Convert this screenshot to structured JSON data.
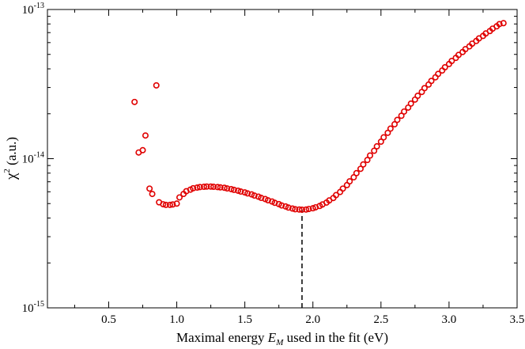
{
  "chart_data": {
    "type": "scatter",
    "title": "",
    "xlabel_parts": [
      "Maximal energy ",
      "E",
      "M",
      " used in the fit (eV)"
    ],
    "ylabel_parts": [
      "χ",
      "2",
      " (a.u.)"
    ],
    "xlim": [
      0.05,
      3.5
    ],
    "ylim_log10": [
      -15,
      -13
    ],
    "x_ticks": [
      0.5,
      1.0,
      1.5,
      2.0,
      2.5,
      3.0,
      3.5
    ],
    "x_tick_labels": [
      "0.5",
      "1.0",
      "1.5",
      "2.0",
      "2.5",
      "3.0",
      "3.5"
    ],
    "y_ticks": [
      -15,
      -14,
      -13
    ],
    "y_tick_labels": [
      {
        "base": "10",
        "exp": "-15"
      },
      {
        "base": "10",
        "exp": "-14"
      },
      {
        "base": "10",
        "exp": "-13"
      }
    ],
    "marker_color": "#e00000",
    "marker": "open-circle",
    "vline": {
      "x": 1.92,
      "style": "dashed",
      "ymax": 4.55e-15
    },
    "series": [
      {
        "name": "chi2",
        "x": [
          0.69,
          0.72,
          0.75,
          0.77,
          0.8,
          0.82,
          0.85,
          0.87,
          0.9,
          0.92,
          0.95,
          0.97,
          1.0,
          1.02,
          1.05,
          1.07,
          1.1,
          1.12,
          1.15,
          1.17,
          1.2,
          1.22,
          1.25,
          1.27,
          1.3,
          1.32,
          1.35,
          1.37,
          1.4,
          1.42,
          1.45,
          1.47,
          1.5,
          1.52,
          1.55,
          1.57,
          1.6,
          1.62,
          1.65,
          1.67,
          1.7,
          1.72,
          1.75,
          1.77,
          1.8,
          1.82,
          1.85,
          1.87,
          1.9,
          1.92,
          1.95,
          1.97,
          2.0,
          2.02,
          2.05,
          2.07,
          2.1,
          2.12,
          2.15,
          2.17,
          2.2,
          2.22,
          2.25,
          2.27,
          2.3,
          2.32,
          2.35,
          2.37,
          2.4,
          2.42,
          2.45,
          2.47,
          2.5,
          2.52,
          2.55,
          2.57,
          2.6,
          2.62,
          2.65,
          2.67,
          2.7,
          2.72,
          2.75,
          2.77,
          2.8,
          2.82,
          2.85,
          2.87,
          2.9,
          2.92,
          2.95,
          2.97,
          3.0,
          3.02,
          3.05,
          3.07,
          3.1,
          3.12,
          3.15,
          3.17,
          3.2,
          3.22,
          3.25,
          3.27,
          3.3,
          3.32,
          3.35,
          3.37,
          3.4
        ],
        "y": [
          2.4e-14,
          1.1e-14,
          1.14e-14,
          1.43e-14,
          6.3e-15,
          5.8e-15,
          3.1e-14,
          5.1e-15,
          4.95e-15,
          4.9e-15,
          4.9e-15,
          4.93e-15,
          5e-15,
          5.5e-15,
          5.8e-15,
          6.05e-15,
          6.2e-15,
          6.33e-15,
          6.4e-15,
          6.45e-15,
          6.48e-15,
          6.5e-15,
          6.5e-15,
          6.48e-15,
          6.45e-15,
          6.42e-15,
          6.38e-15,
          6.32e-15,
          6.25e-15,
          6.18e-15,
          6.1e-15,
          6.02e-15,
          5.94e-15,
          5.85e-15,
          5.76e-15,
          5.66e-15,
          5.56e-15,
          5.46e-15,
          5.36e-15,
          5.26e-15,
          5.16e-15,
          5.06e-15,
          4.96e-15,
          4.86e-15,
          4.78e-15,
          4.7e-15,
          4.63e-15,
          4.58e-15,
          4.56e-15,
          4.55e-15,
          4.56e-15,
          4.6e-15,
          4.65e-15,
          4.72e-15,
          4.82e-15,
          4.93e-15,
          5.08e-15,
          5.25e-15,
          5.45e-15,
          5.7e-15,
          5.98e-15,
          6.3e-15,
          6.65e-15,
          7.05e-15,
          7.5e-15,
          8e-15,
          8.55e-15,
          9.15e-15,
          9.8e-15,
          1.05e-14,
          1.13e-14,
          1.21e-14,
          1.3e-14,
          1.39e-14,
          1.49e-14,
          1.59e-14,
          1.7e-14,
          1.82e-14,
          1.94e-14,
          2.07e-14,
          2.2e-14,
          2.34e-14,
          2.49e-14,
          2.64e-14,
          2.8e-14,
          2.97e-14,
          3.14e-14,
          3.32e-14,
          3.51e-14,
          3.7e-14,
          3.9e-14,
          4.1e-14,
          4.31e-14,
          4.52e-14,
          4.74e-14,
          4.96e-14,
          5.19e-14,
          5.42e-14,
          5.66e-14,
          5.9e-14,
          6.15e-14,
          6.4e-14,
          6.65e-14,
          6.91e-14,
          7.17e-14,
          7.44e-14,
          7.71e-14,
          7.98e-14,
          8.1e-14
        ]
      }
    ]
  }
}
